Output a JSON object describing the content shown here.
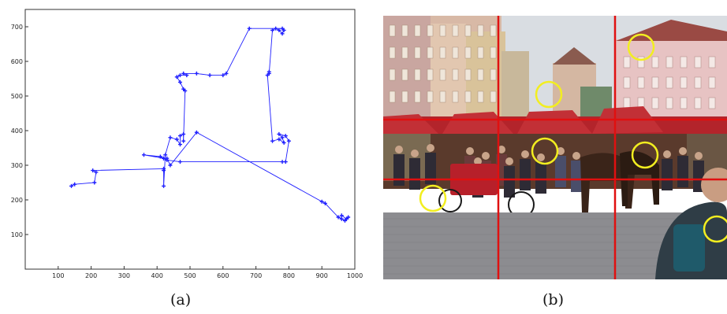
{
  "captions": {
    "a": "(a)",
    "b": "(b)"
  },
  "chart_data": {
    "type": "line",
    "title": "",
    "xlabel": "",
    "ylabel": "",
    "xlim": [
      0,
      1000
    ],
    "ylim": [
      0,
      750
    ],
    "xticks": [
      100,
      200,
      300,
      400,
      500,
      600,
      700,
      800,
      900,
      1000
    ],
    "yticks": [
      100,
      200,
      300,
      400,
      500,
      600,
      700
    ],
    "grid": false,
    "color": "#1f1fff",
    "series": [
      {
        "x": [
          140,
          150,
          210,
          215,
          205,
          420,
          420,
          420,
          425,
          440,
          460,
          470,
          470,
          480,
          480,
          485,
          480,
          470,
          460,
          470,
          490,
          480,
          520,
          560,
          600,
          610,
          680,
          780,
          785,
          780,
          770,
          760,
          750,
          740,
          740,
          735,
          750,
          770,
          785,
          780,
          770,
          790,
          800,
          790,
          780,
          470,
          430,
          420,
          410,
          360,
          420,
          430,
          440,
          520,
          900,
          910,
          950,
          960,
          970,
          980,
          975,
          960
        ],
        "y": [
          240,
          245,
          250,
          280,
          285,
          290,
          285,
          240,
          330,
          380,
          375,
          360,
          385,
          390,
          370,
          515,
          520,
          540,
          555,
          560,
          560,
          565,
          565,
          560,
          560,
          565,
          695,
          695,
          690,
          680,
          690,
          695,
          690,
          565,
          570,
          560,
          370,
          375,
          365,
          380,
          390,
          385,
          370,
          310,
          310,
          310,
          315,
          320,
          325,
          330,
          320,
          320,
          300,
          395,
          195,
          190,
          150,
          145,
          140,
          150,
          145,
          155
        ]
      }
    ]
  },
  "photo": {
    "grid_color": "#e01010",
    "circle_color": "#f2ee20",
    "circles": 6
  }
}
